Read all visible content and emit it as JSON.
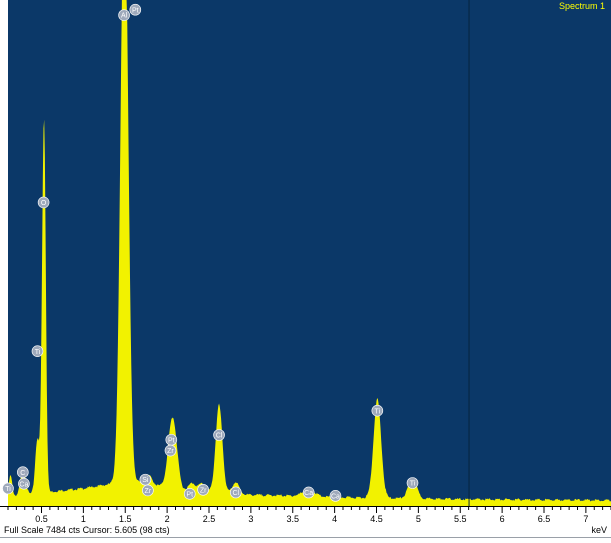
{
  "spectrum_label": "Spectrum 1",
  "status": {
    "full_scale": "Full Scale 7484 cts",
    "cursor": "Cursor: 5.605",
    "cursor_counts": "(98 cts)"
  },
  "unit_label": "keV",
  "colors": {
    "background": "#0b3868",
    "spectrum": "#f2f200",
    "cursor_line": "#07243e",
    "label_text": "#ffff00",
    "marker_fill": "#9ea9bb"
  },
  "chart_data": {
    "type": "area",
    "xlabel": "keV",
    "xlim": [
      0.1,
      7.3
    ],
    "ylim": [
      0,
      7484
    ],
    "x_ticks": [
      "0.5",
      "1",
      "1.5",
      "2",
      "2.5",
      "3",
      "3.5",
      "4",
      "4.5",
      "5",
      "5.5",
      "6",
      "6.5",
      "7"
    ],
    "tick_values": [
      0.5,
      1,
      1.5,
      2,
      2.5,
      3,
      3.5,
      4,
      4.5,
      5,
      5.5,
      6,
      6.5,
      7
    ],
    "cursor_kev": 5.605,
    "cursor_counts": 98,
    "peaks": [
      {
        "kev": 0.13,
        "cts": 300,
        "width": 0.02
      },
      {
        "kev": 0.28,
        "cts": 390,
        "width": 0.03
      },
      {
        "kev": 0.45,
        "cts": 800,
        "width": 0.025
      },
      {
        "kev": 0.525,
        "cts": 4380,
        "width": 0.022
      },
      {
        "kev": 0.54,
        "cts": 1500,
        "width": 0.018
      },
      {
        "kev": 1.49,
        "cts": 9000,
        "width": 0.045
      },
      {
        "kev": 1.78,
        "cts": 130,
        "width": 0.04
      },
      {
        "kev": 2.05,
        "cts": 820,
        "width": 0.045
      },
      {
        "kev": 2.1,
        "cts": 400,
        "width": 0.04
      },
      {
        "kev": 2.3,
        "cts": 110,
        "width": 0.04
      },
      {
        "kev": 2.42,
        "cts": 120,
        "width": 0.04
      },
      {
        "kev": 2.62,
        "cts": 1300,
        "width": 0.04
      },
      {
        "kev": 2.82,
        "cts": 170,
        "width": 0.04
      },
      {
        "kev": 3.69,
        "cts": 110,
        "width": 0.07
      },
      {
        "kev": 4.51,
        "cts": 1460,
        "width": 0.045
      },
      {
        "kev": 4.93,
        "cts": 290,
        "width": 0.05
      }
    ],
    "background_counts": [
      [
        0.2,
        150
      ],
      [
        0.6,
        210
      ],
      [
        1.0,
        260
      ],
      [
        1.3,
        320
      ],
      [
        1.5,
        390
      ],
      [
        1.8,
        320
      ],
      [
        2.2,
        240
      ],
      [
        2.6,
        200
      ],
      [
        3.0,
        165
      ],
      [
        3.5,
        150
      ],
      [
        4.0,
        130
      ],
      [
        4.5,
        120
      ],
      [
        5.0,
        110
      ],
      [
        5.5,
        100
      ],
      [
        6.0,
        96
      ],
      [
        6.5,
        92
      ],
      [
        7.0,
        88
      ],
      [
        7.3,
        86
      ]
    ],
    "element_markers": [
      {
        "label": "Ti",
        "kev": 0.05,
        "cts": 260
      },
      {
        "label": "C",
        "kev": 0.277,
        "cts": 500
      },
      {
        "label": "Ca",
        "kev": 0.29,
        "cts": 330
      },
      {
        "label": "O",
        "kev": 0.525,
        "cts": 4490
      },
      {
        "label": "Ti",
        "kev": 0.452,
        "cts": 2290
      },
      {
        "label": "Al",
        "kev": 1.486,
        "cts": 7260
      },
      {
        "label": "Pt",
        "kev": 1.62,
        "cts": 7340
      },
      {
        "label": "Si",
        "kev": 1.74,
        "cts": 390
      },
      {
        "label": "Zr",
        "kev": 1.77,
        "cts": 230
      },
      {
        "label": "Pt",
        "kev": 2.05,
        "cts": 980
      },
      {
        "label": "Zr",
        "kev": 2.04,
        "cts": 820
      },
      {
        "label": "Pt",
        "kev": 2.27,
        "cts": 180
      },
      {
        "label": "Zr",
        "kev": 2.43,
        "cts": 240
      },
      {
        "label": "Cl",
        "kev": 2.62,
        "cts": 1050
      },
      {
        "label": "Cl",
        "kev": 2.82,
        "cts": 200
      },
      {
        "label": "Ca",
        "kev": 3.69,
        "cts": 200
      },
      {
        "label": "Ca",
        "kev": 4.01,
        "cts": 150
      },
      {
        "label": "Ti",
        "kev": 4.51,
        "cts": 1410
      },
      {
        "label": "Ti",
        "kev": 4.93,
        "cts": 340
      }
    ]
  }
}
